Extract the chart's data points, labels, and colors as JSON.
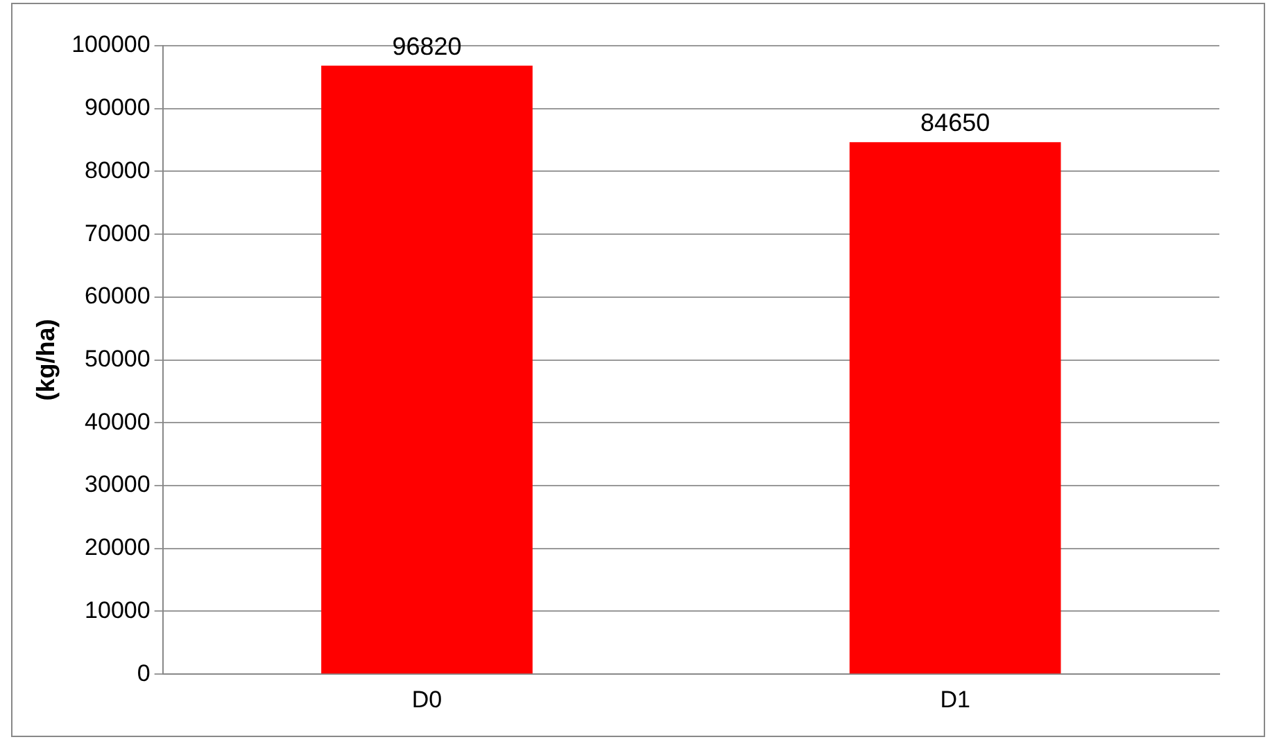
{
  "chart_data": {
    "type": "bar",
    "ylabel": "(kg/ha)",
    "categories": [
      "D0",
      "D1"
    ],
    "values": [
      96820,
      84650
    ],
    "color": "#ff0000",
    "ylim": [
      0,
      100000
    ],
    "yticks": [
      0,
      10000,
      20000,
      30000,
      40000,
      50000,
      60000,
      70000,
      80000,
      90000,
      100000
    ],
    "grid": "y",
    "data_labels": true
  }
}
